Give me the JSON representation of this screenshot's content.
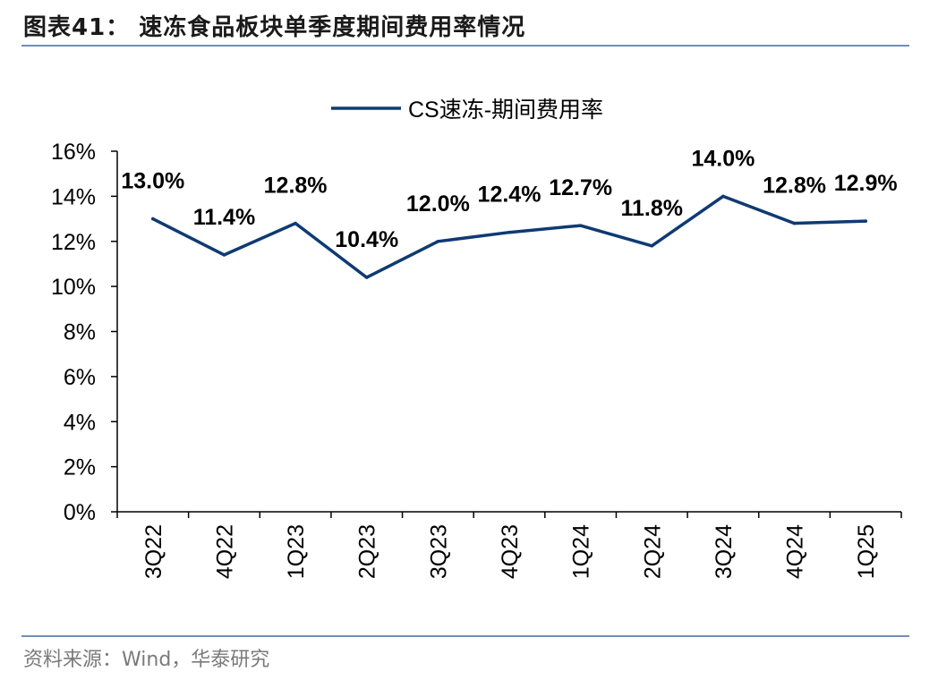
{
  "title": "图表41：  速冻食品板块单季度期间费用率情况",
  "source": "资料来源：Wind，华泰研究",
  "colors": {
    "line": "#0f3a73",
    "rule": "#6f8fb5",
    "axis": "#000000"
  },
  "chart_data": {
    "type": "line",
    "categories": [
      "3Q22",
      "4Q22",
      "1Q23",
      "2Q23",
      "3Q23",
      "4Q23",
      "1Q24",
      "2Q24",
      "3Q24",
      "4Q24",
      "1Q25"
    ],
    "series": [
      {
        "name": "CS速冻-期间费用率",
        "values": [
          13.0,
          11.4,
          12.8,
          10.4,
          12.0,
          12.4,
          12.7,
          11.8,
          14.0,
          12.8,
          12.9
        ],
        "labels": [
          "13.0%",
          "11.4%",
          "12.8%",
          "10.4%",
          "12.0%",
          "12.4%",
          "12.7%",
          "11.8%",
          "14.0%",
          "12.8%",
          "12.9%"
        ]
      }
    ],
    "ylim": [
      0,
      16
    ],
    "yticks": [
      {
        "value": 0,
        "label": "0%"
      },
      {
        "value": 2,
        "label": "2%"
      },
      {
        "value": 4,
        "label": "4%"
      },
      {
        "value": 6,
        "label": "6%"
      },
      {
        "value": 8,
        "label": "8%"
      },
      {
        "value": 10,
        "label": "10%"
      },
      {
        "value": 12,
        "label": "12%"
      },
      {
        "value": 14,
        "label": "14%"
      },
      {
        "value": 16,
        "label": "16%"
      }
    ],
    "legend_position": "top-center",
    "grid": false
  }
}
